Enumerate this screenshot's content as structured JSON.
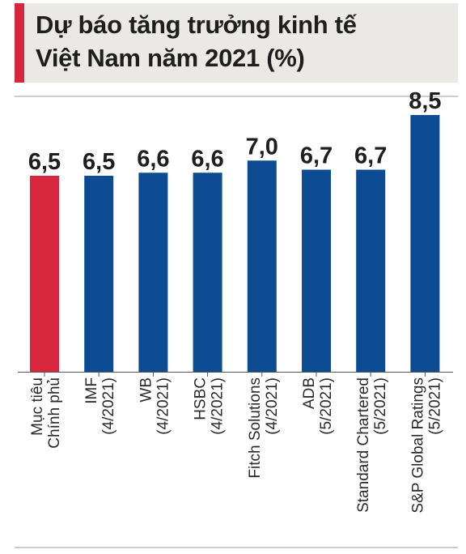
{
  "title_lines": [
    "Dự báo tăng trưởng kinh tế",
    "Việt Nam năm 2021 (%)"
  ],
  "colors": {
    "highlight": "#d7263d",
    "bar": "#0d4c92",
    "title_bg": "#ebe9e6",
    "text": "#1e1e1e"
  },
  "chart_data": {
    "type": "bar",
    "title": "Dự báo tăng trưởng kinh tế Việt Nam năm 2021 (%)",
    "unit": "%",
    "categories": [
      [
        "Mục tiêu",
        "Chính phủ"
      ],
      [
        "IMF",
        "(4/2021)"
      ],
      [
        "WB",
        "(4/2021)"
      ],
      [
        "HSBC",
        "(4/2021)"
      ],
      [
        "Fitch Solutions",
        "(4/2021)"
      ],
      [
        "ADB",
        "(5/2021)"
      ],
      [
        "Standard Chartered",
        "(5/2021)"
      ],
      [
        "S&P Global Ratings",
        "(5/2021)"
      ]
    ],
    "values": [
      6.5,
      6.5,
      6.6,
      6.6,
      7.0,
      6.7,
      6.7,
      8.5
    ],
    "value_labels": [
      "6,5",
      "6,5",
      "6,6",
      "6,6",
      "7,0",
      "6,7",
      "6,7",
      "8,5"
    ],
    "highlight_index": 0,
    "grid": false,
    "legend": "none"
  }
}
